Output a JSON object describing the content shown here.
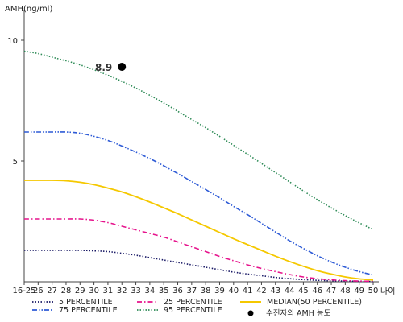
{
  "chart_data": {
    "type": "line",
    "ylabel": "AMH(ng/ml)",
    "xlabel": "나이",
    "y_ticks": [
      "10",
      "5"
    ],
    "y_tick_values": [
      10,
      5
    ],
    "ylim": [
      0,
      11
    ],
    "categories": [
      "16-25",
      "26",
      "27",
      "28",
      "29",
      "30",
      "31",
      "32",
      "33",
      "34",
      "35",
      "36",
      "37",
      "38",
      "39",
      "40",
      "41",
      "42",
      "43",
      "44",
      "45",
      "46",
      "47",
      "48",
      "49",
      "50"
    ],
    "series": [
      {
        "name": "5 PERCENTILE",
        "color": "#1a1a66",
        "dash": "dotted",
        "values": [
          1.3,
          1.3,
          1.3,
          1.3,
          1.3,
          1.28,
          1.25,
          1.18,
          1.1,
          1.0,
          0.9,
          0.8,
          0.7,
          0.6,
          0.5,
          0.4,
          0.32,
          0.25,
          0.18,
          0.13,
          0.09,
          0.06,
          0.04,
          0.03,
          0.02,
          0.01
        ]
      },
      {
        "name": "25 PERCENTILE",
        "color": "#e6138c",
        "dash": "dashdot",
        "values": [
          2.6,
          2.6,
          2.6,
          2.6,
          2.6,
          2.55,
          2.45,
          2.3,
          2.15,
          2.0,
          1.85,
          1.65,
          1.45,
          1.25,
          1.05,
          0.87,
          0.7,
          0.55,
          0.42,
          0.3,
          0.2,
          0.13,
          0.08,
          0.05,
          0.03,
          0.02
        ]
      },
      {
        "name": "MEDIAN(50 PERCENTILE)",
        "color": "#f5c800",
        "dash": "solid",
        "values": [
          4.2,
          4.2,
          4.2,
          4.18,
          4.12,
          4.02,
          3.88,
          3.72,
          3.52,
          3.3,
          3.06,
          2.82,
          2.56,
          2.3,
          2.04,
          1.78,
          1.54,
          1.3,
          1.06,
          0.84,
          0.64,
          0.46,
          0.32,
          0.2,
          0.12,
          0.07
        ]
      },
      {
        "name": "75 PERCENTILE",
        "color": "#2e5bd6",
        "dash": "dashdotdot",
        "values": [
          6.2,
          6.2,
          6.2,
          6.2,
          6.15,
          6.02,
          5.85,
          5.62,
          5.37,
          5.1,
          4.8,
          4.48,
          4.15,
          3.82,
          3.48,
          3.12,
          2.78,
          2.42,
          2.06,
          1.7,
          1.38,
          1.08,
          0.82,
          0.6,
          0.42,
          0.28
        ]
      },
      {
        "name": "95 PERCENTILE",
        "color": "#2e8b57",
        "dash": "dotted",
        "values": [
          9.55,
          9.45,
          9.3,
          9.15,
          8.98,
          8.78,
          8.55,
          8.3,
          8.02,
          7.72,
          7.4,
          7.06,
          6.72,
          6.38,
          6.02,
          5.65,
          5.28,
          4.9,
          4.52,
          4.14,
          3.76,
          3.4,
          3.06,
          2.74,
          2.44,
          2.16
        ]
      }
    ],
    "point": {
      "name": "수진자의 AMH 농도",
      "x": "32",
      "y": 8.9,
      "label": "8.9",
      "color": "#000000"
    },
    "legend": {
      "placement": "bottom"
    },
    "grid": false
  }
}
